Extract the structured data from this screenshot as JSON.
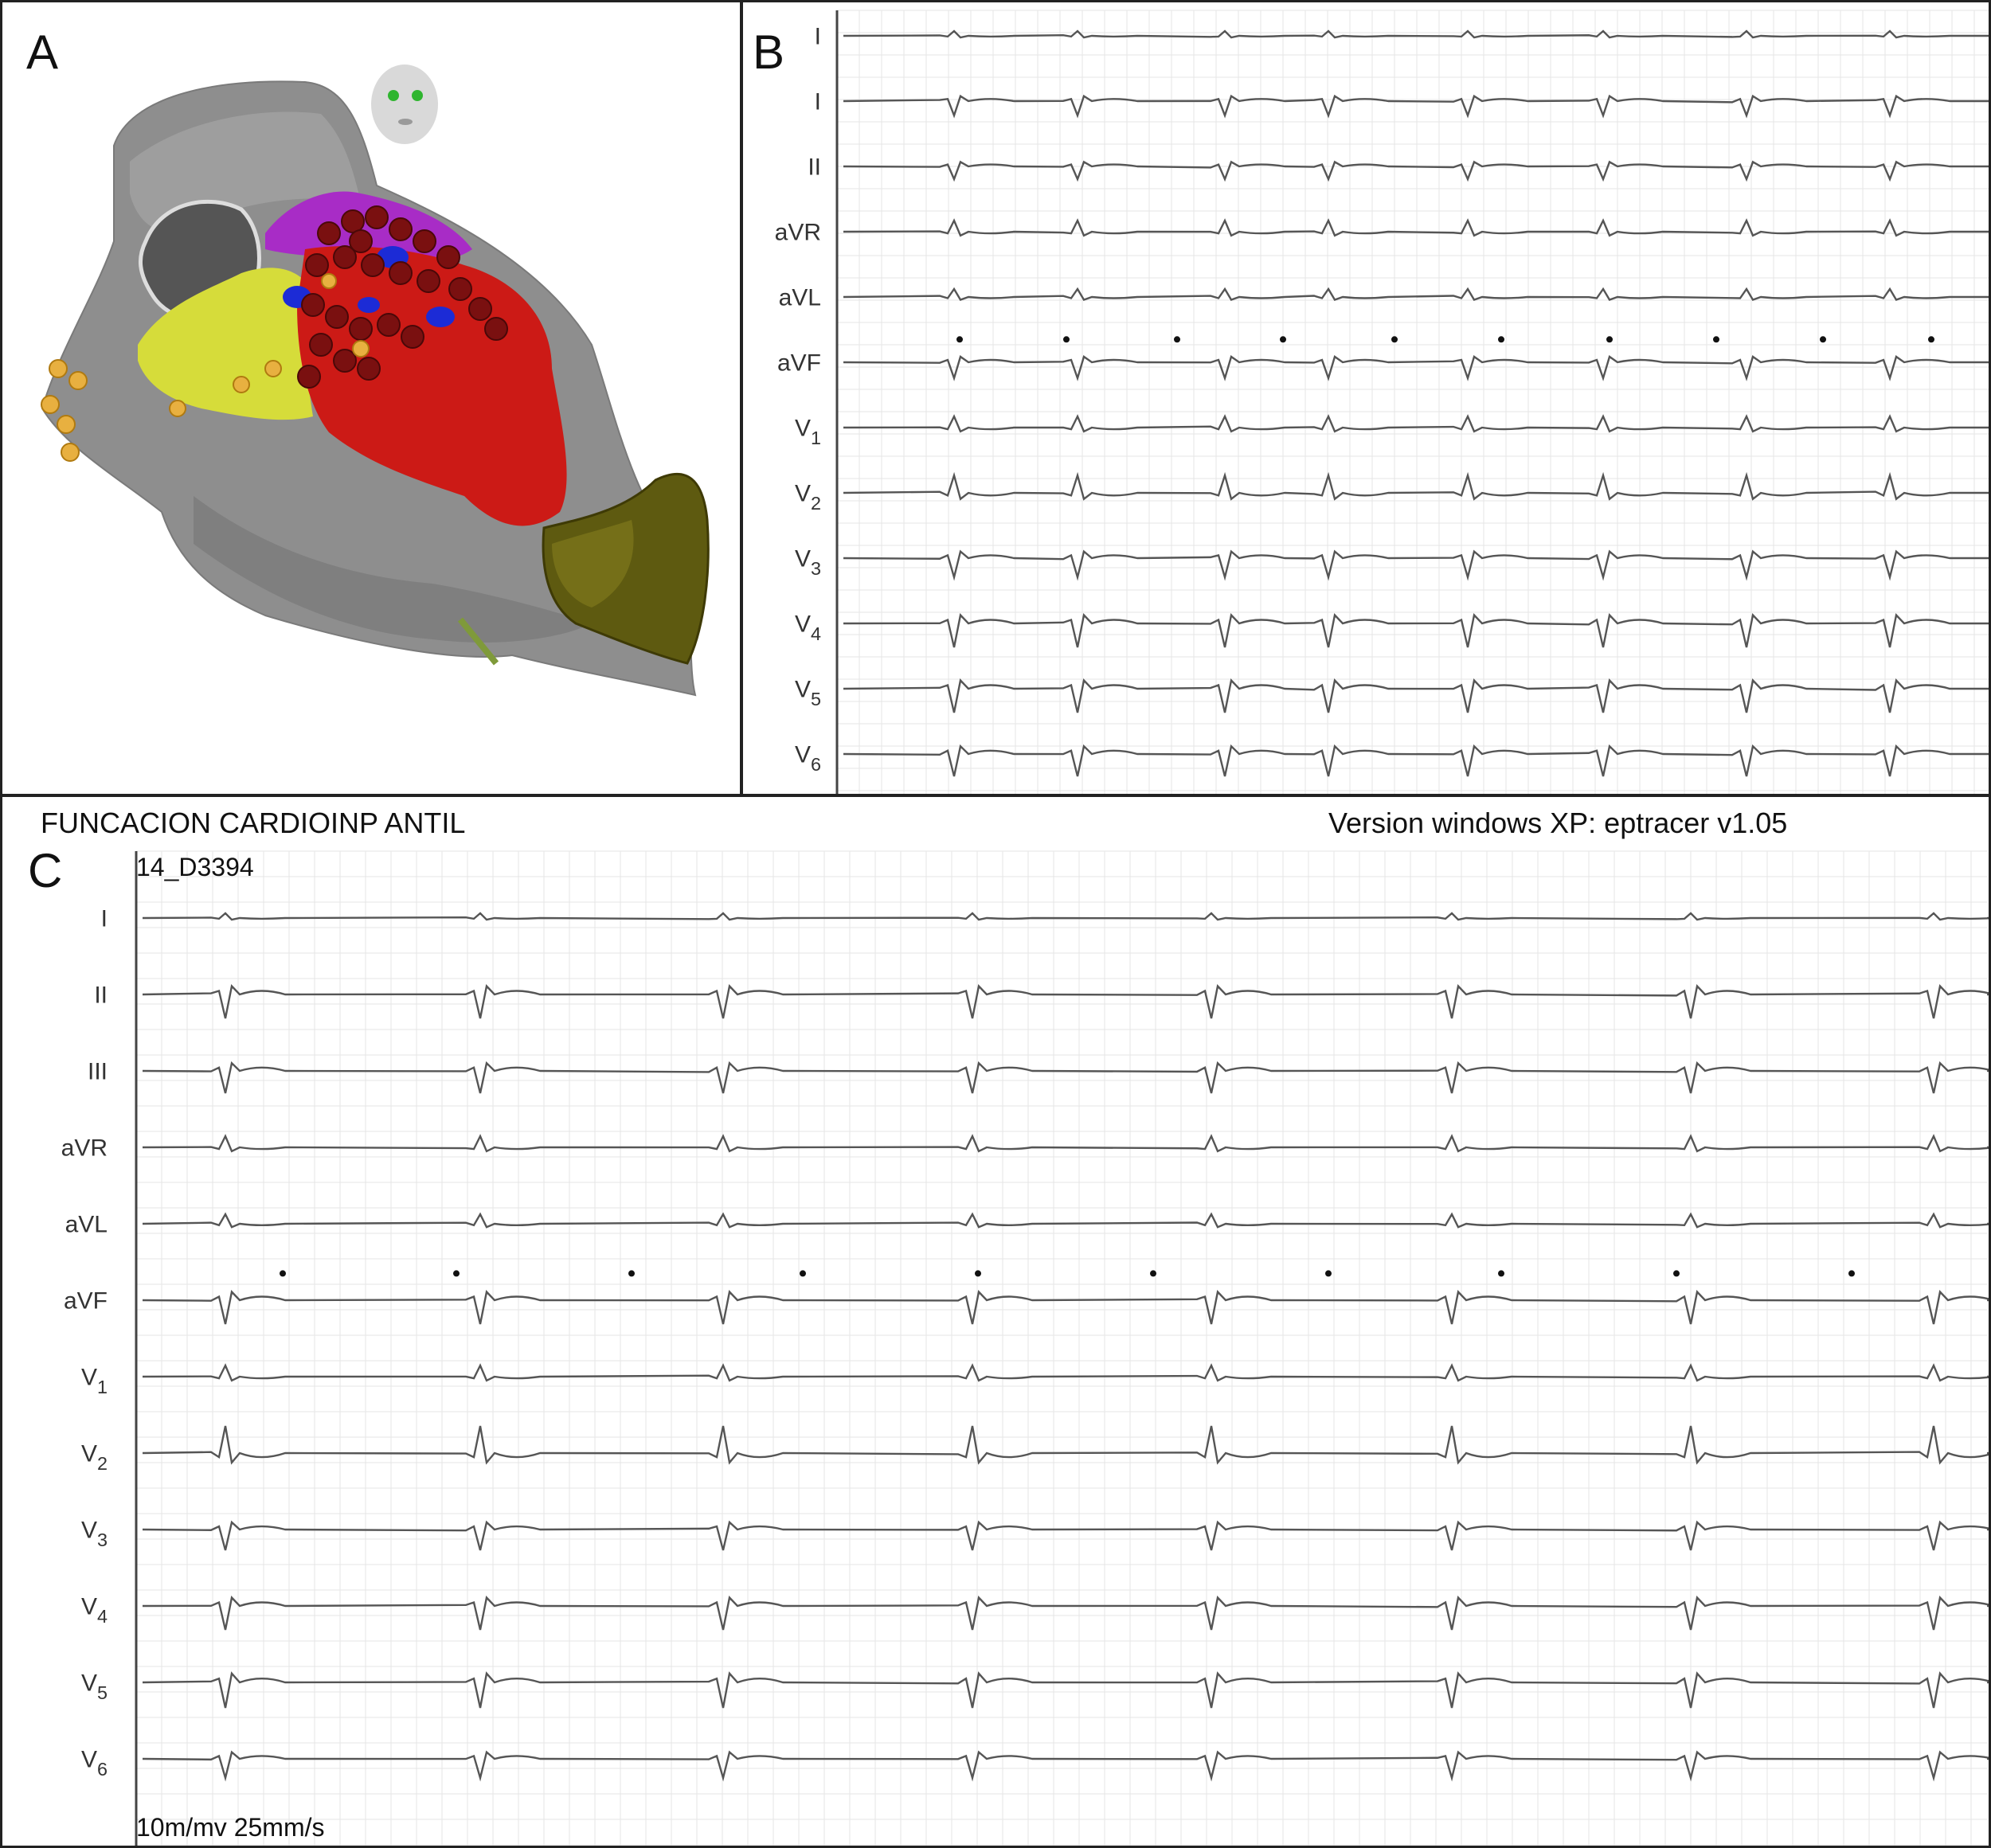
{
  "panels": {
    "a": {
      "letter": "A"
    },
    "b": {
      "letter": "B",
      "leads": [
        {
          "main": "I",
          "sub": ""
        },
        {
          "main": "I",
          "sub": ""
        },
        {
          "main": "II",
          "sub": ""
        },
        {
          "main": "aVR",
          "sub": ""
        },
        {
          "main": "aVL",
          "sub": ""
        },
        {
          "main": "aVF",
          "sub": ""
        },
        {
          "main": "V",
          "sub": "1"
        },
        {
          "main": "V",
          "sub": "2"
        },
        {
          "main": "V",
          "sub": "3"
        },
        {
          "main": "V",
          "sub": "4"
        },
        {
          "main": "V",
          "sub": "5"
        },
        {
          "main": "V",
          "sub": "6"
        }
      ]
    },
    "c": {
      "letter": "C",
      "header_left": "FUNCACION CARDIOINP ANTIL",
      "header_right": "Version windows XP: eptracer v1.05",
      "record_id": "14_D3394",
      "footer": "10m/mv 25mm/s",
      "leads": [
        {
          "main": "I",
          "sub": ""
        },
        {
          "main": "II",
          "sub": ""
        },
        {
          "main": "III",
          "sub": ""
        },
        {
          "main": "aVR",
          "sub": ""
        },
        {
          "main": "aVL",
          "sub": ""
        },
        {
          "main": "aVF",
          "sub": ""
        },
        {
          "main": "V",
          "sub": "1"
        },
        {
          "main": "V",
          "sub": "2"
        },
        {
          "main": "V",
          "sub": "3"
        },
        {
          "main": "V",
          "sub": "4"
        },
        {
          "main": "V",
          "sub": "5"
        },
        {
          "main": "V",
          "sub": "6"
        }
      ]
    }
  },
  "colors": {
    "chamber": "#8e8e8e",
    "scar_red": "#cc1a16",
    "ablation_lesion": "#7a1010",
    "yellow_region": "#d6dc3a",
    "purple_region": "#a82cc6",
    "blue_region": "#1c2bd6",
    "tag_marker": "#e8b040",
    "catheter_olive": "#5e5a10",
    "trace": "#555555",
    "grid": "#e6e6e6"
  }
}
